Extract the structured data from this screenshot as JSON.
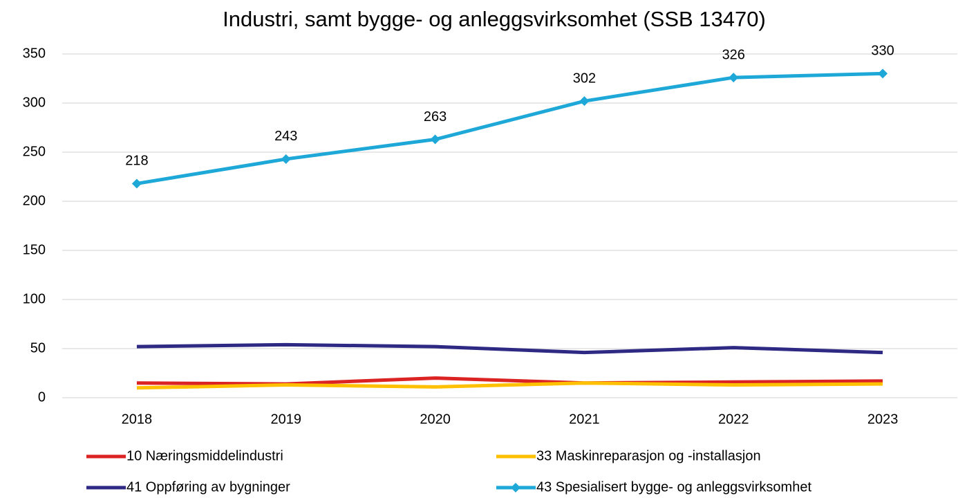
{
  "chart_data": {
    "type": "line",
    "title": "Industri, samt bygge- og anleggsvirksomhet (SSB 13470)",
    "categories": [
      "2018",
      "2019",
      "2020",
      "2021",
      "2022",
      "2023"
    ],
    "series": [
      {
        "name": "10 Næringsmiddelindustri",
        "color": "#dc2323",
        "values": [
          15,
          14,
          20,
          15,
          16,
          17
        ]
      },
      {
        "name": "33 Maskinreparasjon og -installasjon",
        "color": "#ffc000",
        "values": [
          10,
          13,
          11,
          15,
          13,
          14
        ]
      },
      {
        "name": "41 Oppføring av bygninger",
        "color": "#2e2a84",
        "values": [
          52,
          54,
          52,
          46,
          51,
          46
        ]
      },
      {
        "name": "43 Spesialisert bygge- og anleggsvirksomhet",
        "color": "#1ea8d8",
        "values": [
          218,
          243,
          263,
          302,
          326,
          330
        ],
        "marker": "diamond",
        "data_labels": true
      }
    ],
    "ylim": [
      0,
      350
    ],
    "yticks": [
      0,
      50,
      100,
      150,
      200,
      250,
      300,
      350
    ],
    "grid": true,
    "legend": "bottom"
  }
}
